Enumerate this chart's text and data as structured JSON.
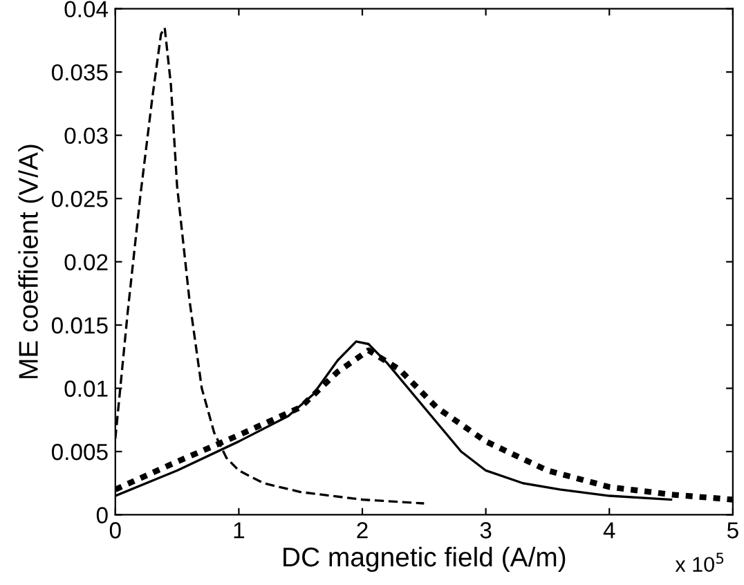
{
  "chart_data": {
    "type": "line",
    "xlabel": "DC magnetic field (A/m)",
    "ylabel": "ME coefficient (V/A)",
    "annotations": [
      "x 10$^{5}$"
    ],
    "xlim": [
      0,
      5
    ],
    "ylim": [
      0,
      0.04
    ],
    "xticks": [
      0,
      1,
      2,
      3,
      4,
      5
    ],
    "yticks": [
      0,
      0.005,
      0.01,
      0.015,
      0.02,
      0.025,
      0.03,
      0.035,
      0.04
    ],
    "grid": false,
    "legend": false,
    "marker": "none",
    "series": [
      {
        "color": "#000000",
        "line_style": "dashed",
        "x": [
          0,
          0.1,
          0.2,
          0.3,
          0.37,
          0.4,
          0.45,
          0.5,
          0.6,
          0.7,
          0.8,
          0.9,
          1.0,
          1.2,
          1.5,
          2.0,
          2.5
        ],
        "values": [
          0.006,
          0.016,
          0.025,
          0.033,
          0.038,
          0.0385,
          0.034,
          0.026,
          0.017,
          0.01,
          0.0065,
          0.0045,
          0.0035,
          0.0025,
          0.0018,
          0.0012,
          0.0009
        ]
      },
      {
        "color": "#000000",
        "line_style": "solid",
        "x": [
          0,
          0.5,
          1.0,
          1.4,
          1.6,
          1.8,
          1.95,
          2.05,
          2.2,
          2.5,
          2.8,
          3.0,
          3.3,
          3.6,
          4.0,
          4.5
        ],
        "values": [
          0.0015,
          0.0035,
          0.0058,
          0.0078,
          0.0095,
          0.0122,
          0.0137,
          0.0135,
          0.012,
          0.0085,
          0.005,
          0.0035,
          0.0025,
          0.002,
          0.0015,
          0.0012
        ]
      },
      {
        "color": "#000000",
        "line_style": "dotted",
        "x": [
          0,
          0.5,
          1.0,
          1.5,
          1.8,
          2.05,
          2.3,
          2.6,
          3.0,
          3.5,
          4.0,
          4.5,
          5.0
        ],
        "values": [
          0.002,
          0.0042,
          0.0063,
          0.0085,
          0.0113,
          0.013,
          0.0115,
          0.0085,
          0.0058,
          0.0035,
          0.0022,
          0.0016,
          0.0012
        ]
      }
    ]
  }
}
